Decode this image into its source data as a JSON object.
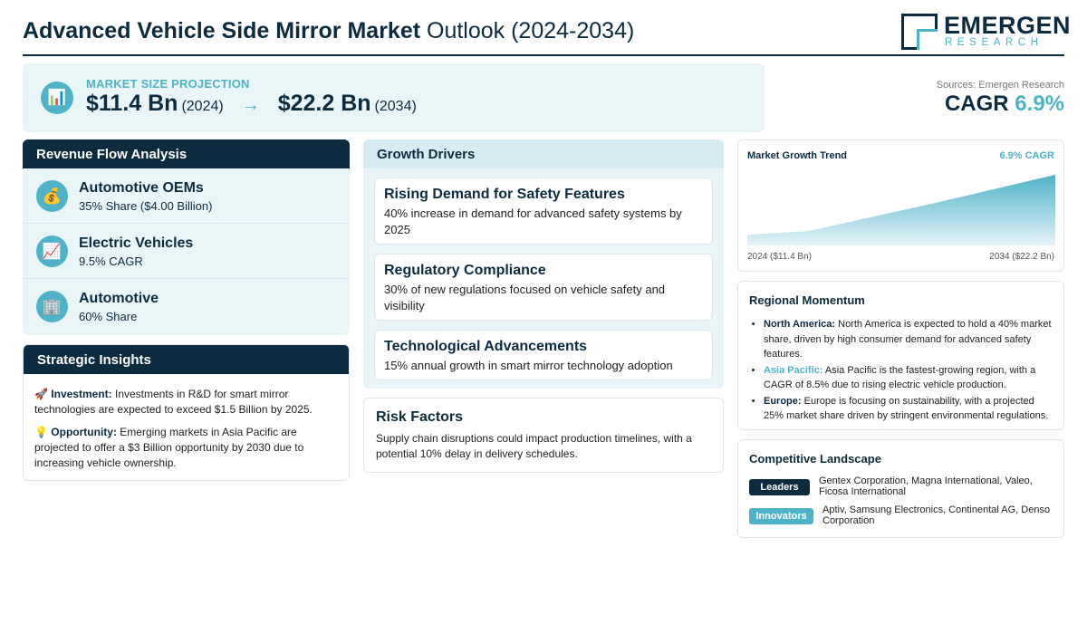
{
  "header": {
    "title_bold": "Advanced Vehicle Side Mirror Market",
    "title_rest": " Outlook (2024-2034)",
    "logo_name": "EMERGEN",
    "logo_sub": "RESEARCH"
  },
  "projection": {
    "icon": "bar-chart-icon",
    "label": "MARKET SIZE PROJECTION",
    "start_value": "$11.4 Bn",
    "start_year": "(2024)",
    "arrow": "→",
    "end_value": "$22.2 Bn",
    "end_year": "(2034)"
  },
  "cagr": {
    "source": "Sources: Emergen Research",
    "label": "CAGR",
    "value": "6.9%"
  },
  "revenue": {
    "title": "Revenue Flow Analysis",
    "items": [
      {
        "icon": "money-bag-icon",
        "name": "Automotive OEMs",
        "sub": "35% Share ($4.00 Billion)"
      },
      {
        "icon": "trend-up-icon",
        "name": "Electric Vehicles",
        "sub": "9.5% CAGR"
      },
      {
        "icon": "building-icon",
        "name": "Automotive",
        "sub": "60% Share"
      }
    ]
  },
  "insights": {
    "title": "Strategic Insights",
    "items": [
      {
        "icon": "rocket-icon",
        "label": "Investment:",
        "text": "Investments in R&D for smart mirror technologies are expected to exceed $1.5 Billion by 2025."
      },
      {
        "icon": "lightbulb-icon",
        "label": "Opportunity:",
        "text": "Emerging markets in Asia Pacific are projected to offer a $3 Billion opportunity by 2030 due to increasing vehicle ownership."
      }
    ]
  },
  "drivers": {
    "title": "Growth Drivers",
    "items": [
      {
        "title": "Rising Demand for Safety Features",
        "desc": "40% increase in demand for advanced safety systems by 2025"
      },
      {
        "title": "Regulatory Compliance",
        "desc": "30% of new regulations focused on vehicle safety and visibility"
      },
      {
        "title": "Technological Advancements",
        "desc": "15% annual growth in smart mirror technology adoption"
      }
    ]
  },
  "risk": {
    "title": "Risk Factors",
    "desc": "Supply chain disruptions could impact production timelines, with a potential 10% delay in delivery schedules."
  },
  "trend": {
    "title": "Market Growth Trend",
    "cagr": "6.9% CAGR",
    "start_label": "2024 ($11.4 Bn)",
    "end_label": "2034 ($22.2 Bn)"
  },
  "chart_data": {
    "type": "area",
    "title": "Market Growth Trend",
    "x": [
      2024,
      2026,
      2030,
      2034
    ],
    "values": [
      11.4,
      12.1,
      17.0,
      22.2
    ],
    "xlabel": "",
    "ylabel": "",
    "grid": false,
    "colors": {
      "top": "#4fb3c8",
      "bottom": "#e4f3f7"
    }
  },
  "regional": {
    "title": "Regional Momentum",
    "items": [
      {
        "region": "North America:",
        "text": "North America is expected to hold a 40% market share, driven by high consumer demand for advanced safety features."
      },
      {
        "region": "Asia Pacific:",
        "text": "Asia Pacific is the fastest-growing region, with a CAGR of 8.5% due to rising electric vehicle production."
      },
      {
        "region": "Europe:",
        "text": "Europe is focusing on sustainability, with a projected 25% market share driven by stringent environmental regulations."
      }
    ]
  },
  "competitive": {
    "title": "Competitive Landscape",
    "leaders_label": "Leaders",
    "leaders": "Gentex Corporation, Magna International, Valeo, Ficosa International",
    "innovators_label": "Innovators",
    "innovators": "Aptiv, Samsung Electronics, Continental AG, Denso Corporation"
  },
  "colors": {
    "navy": "#0d2b3e",
    "accent": "#4fb3c8",
    "panel": "#eaf5f8"
  }
}
